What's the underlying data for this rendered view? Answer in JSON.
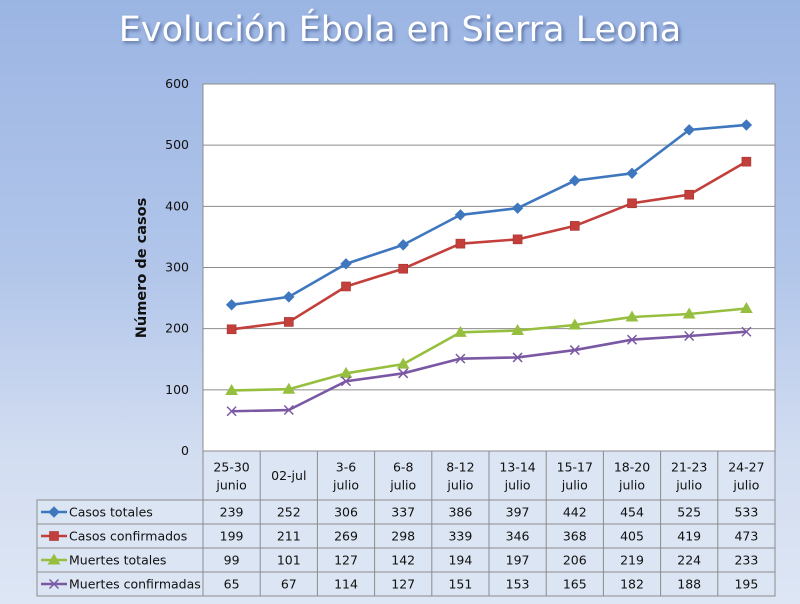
{
  "chart_data": {
    "type": "line",
    "title": "Evolución Ébola en Sierra Leona",
    "xlabel": "",
    "ylabel": "Número de casos",
    "ylim": [
      0,
      600
    ],
    "yticks": [
      0,
      100,
      200,
      300,
      400,
      500,
      600
    ],
    "grid": true,
    "legend": "data-table-bottom",
    "categories": [
      [
        "25-30",
        "junio"
      ],
      [
        "02-jul"
      ],
      [
        "3-6",
        "julio"
      ],
      [
        "6-8",
        "julio"
      ],
      [
        "8-12",
        "julio"
      ],
      [
        "13-14",
        "julio"
      ],
      [
        "15-17",
        "julio"
      ],
      [
        "18-20",
        "julio"
      ],
      [
        "21-23",
        "julio"
      ],
      [
        "24-27",
        "julio"
      ]
    ],
    "series": [
      {
        "name": "Casos totales",
        "color": "#3f77bf",
        "marker": "diamond",
        "values": [
          239,
          252,
          306,
          337,
          386,
          397,
          442,
          454,
          525,
          533
        ]
      },
      {
        "name": "Casos confirmados",
        "color": "#c33f3b",
        "marker": "square",
        "values": [
          199,
          211,
          269,
          298,
          339,
          346,
          368,
          405,
          419,
          473
        ]
      },
      {
        "name": "Muertes totales",
        "color": "#97bf3f",
        "marker": "triangle",
        "values": [
          99,
          101,
          127,
          142,
          194,
          197,
          206,
          219,
          224,
          233
        ]
      },
      {
        "name": "Muertes confirmadas",
        "color": "#7a58a3",
        "marker": "x",
        "values": [
          65,
          67,
          114,
          127,
          151,
          153,
          165,
          182,
          188,
          195
        ]
      }
    ]
  }
}
